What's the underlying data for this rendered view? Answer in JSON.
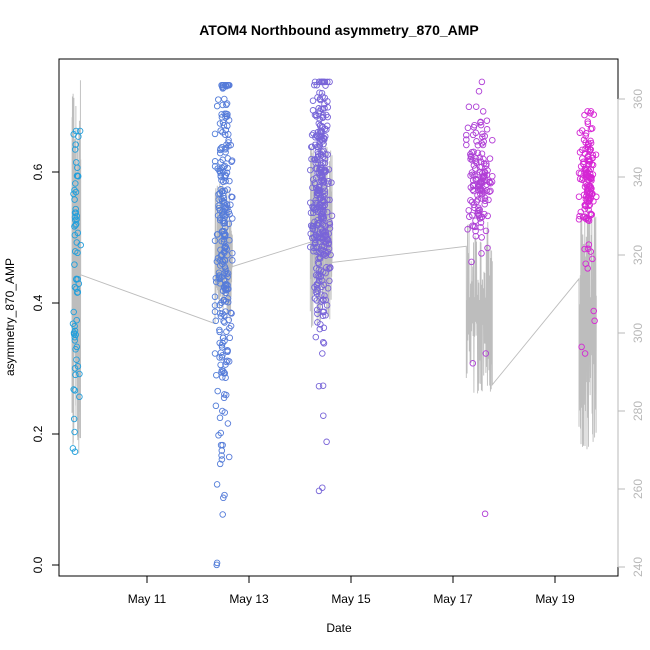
{
  "chart_data": {
    "type": "scatter",
    "title": "ATOM4 Northbound asymmetry_870_AMP",
    "xlabel": "Date",
    "ylabel": "asymmetry_870_AMP",
    "x_ticks": [
      "May 11",
      "May 13",
      "May 15",
      "May 17",
      "May 19"
    ],
    "y_ticks": [
      "0.0",
      "0.2",
      "0.4",
      "0.6"
    ],
    "y2_ticks": [
      "240",
      "260",
      "280",
      "300",
      "320",
      "340",
      "360"
    ],
    "xlim": [
      "2022-05-09T14:00",
      "2022-05-20T08:00"
    ],
    "ylim": [
      -0.01,
      0.78
    ],
    "y2lim": [
      238,
      365
    ],
    "grid": false,
    "legend": "none",
    "colors": {
      "axis": "#000000",
      "secondary_axis": "#b8b8b8",
      "line": "#bdbdbd",
      "points_start": "#1ca3db",
      "points_end": "#e01fd4"
    },
    "series": [
      {
        "marker": "circle",
        "axis": "left",
        "clusters": [
          {
            "start": "2022-05-09T20:00",
            "end": "2022-05-10T00:00",
            "y_mean": 0.47,
            "y_sd": 0.12,
            "y_min": 0.18,
            "y_max": 0.67,
            "n": 60,
            "seed": 11,
            "extra": [
              [
                0.665,
                0.2
              ],
              [
                0.185,
                0.1
              ],
              [
                0.21,
                0.3
              ],
              [
                0.275,
                0.2
              ],
              [
                0.34,
                0.55
              ]
            ]
          },
          {
            "start": "2022-05-12T14:00",
            "end": "2022-05-12T22:00",
            "y_mean": 0.49,
            "y_sd": 0.15,
            "y_min": 0.005,
            "y_max": 0.74,
            "n": 260,
            "seed": 23,
            "extra": [
              [
                0.735,
                0.45
              ],
              [
                0.007,
                0.1
              ],
              [
                0.01,
                0.12
              ],
              [
                0.13,
                0.12
              ],
              [
                0.168,
                0.4
              ],
              [
                0.19,
                0.35
              ],
              [
                0.205,
                0.2
              ],
              [
                0.25,
                0.05
              ],
              [
                0.71,
                0.65
              ]
            ]
          },
          {
            "start": "2022-05-14T10:00",
            "end": "2022-05-14T20:00",
            "y_mean": 0.56,
            "y_sd": 0.09,
            "y_min": 0.12,
            "y_max": 0.745,
            "n": 330,
            "seed": 37,
            "extra": [
              [
                0.74,
                0.3
              ],
              [
                0.745,
                0.5
              ],
              [
                0.12,
                0.4
              ],
              [
                0.125,
                0.55
              ],
              [
                0.195,
                0.75
              ],
              [
                0.235,
                0.6
              ],
              [
                0.28,
                0.4
              ],
              [
                0.33,
                0.55
              ]
            ]
          },
          {
            "start": "2022-05-17T10:00",
            "end": "2022-05-17T22:00",
            "y_mean": 0.6,
            "y_sd": 0.05,
            "y_min": 0.08,
            "y_max": 0.75,
            "n": 140,
            "seed": 41,
            "extra": [
              [
                0.745,
                0.6
              ],
              [
                0.707,
                0.1
              ],
              [
                0.7,
                0.65
              ],
              [
                0.085,
                0.72
              ],
              [
                0.315,
                0.25
              ],
              [
                0.33,
                0.75
              ],
              [
                0.47,
                0.2
              ]
            ]
          },
          {
            "start": "2022-05-19T14:00",
            "end": "2022-05-19T22:00",
            "y_mean": 0.6,
            "y_sd": 0.05,
            "y_min": 0.28,
            "y_max": 0.7,
            "n": 140,
            "seed": 53,
            "extra": [
              [
                0.695,
                0.85
              ],
              [
                0.34,
                0.15
              ],
              [
                0.33,
                0.35
              ],
              [
                0.38,
                0.9
              ],
              [
                0.395,
                0.85
              ],
              [
                0.46,
                0.5
              ]
            ]
          }
        ]
      },
      {
        "marker": "line",
        "axis": "right",
        "clusters": [
          {
            "start": "2022-05-09T20:00",
            "end": "2022-05-10T00:00",
            "y_low": 268,
            "y_high": 362,
            "seed": 5
          },
          {
            "start": "2022-05-12T14:00",
            "end": "2022-05-12T22:00",
            "y_low": 300,
            "y_high": 335,
            "seed": 6
          },
          {
            "start": "2022-05-14T10:00",
            "end": "2022-05-14T20:00",
            "y_low": 298,
            "y_high": 345,
            "seed": 7
          },
          {
            "start": "2022-05-17T10:00",
            "end": "2022-05-17T22:00",
            "y_low": 282,
            "y_high": 325,
            "seed": 8
          },
          {
            "start": "2022-05-19T14:00",
            "end": "2022-05-19T22:00",
            "y_low": 268,
            "y_high": 330,
            "seed": 9
          }
        ],
        "bridges": [
          {
            "x": [
              "2022-05-10T00:00",
              "2022-05-12T14:00"
            ],
            "y": [
              312,
              300
            ]
          },
          {
            "x": [
              "2022-05-12T22:00",
              "2022-05-14T10:00"
            ],
            "y": [
              314,
              320
            ]
          },
          {
            "x": [
              "2022-05-14T20:00",
              "2022-05-17T10:00"
            ],
            "y": [
              315,
              319
            ]
          },
          {
            "x": [
              "2022-05-17T22:00",
              "2022-05-19T14:00"
            ],
            "y": [
              285,
              311
            ]
          }
        ]
      }
    ]
  }
}
